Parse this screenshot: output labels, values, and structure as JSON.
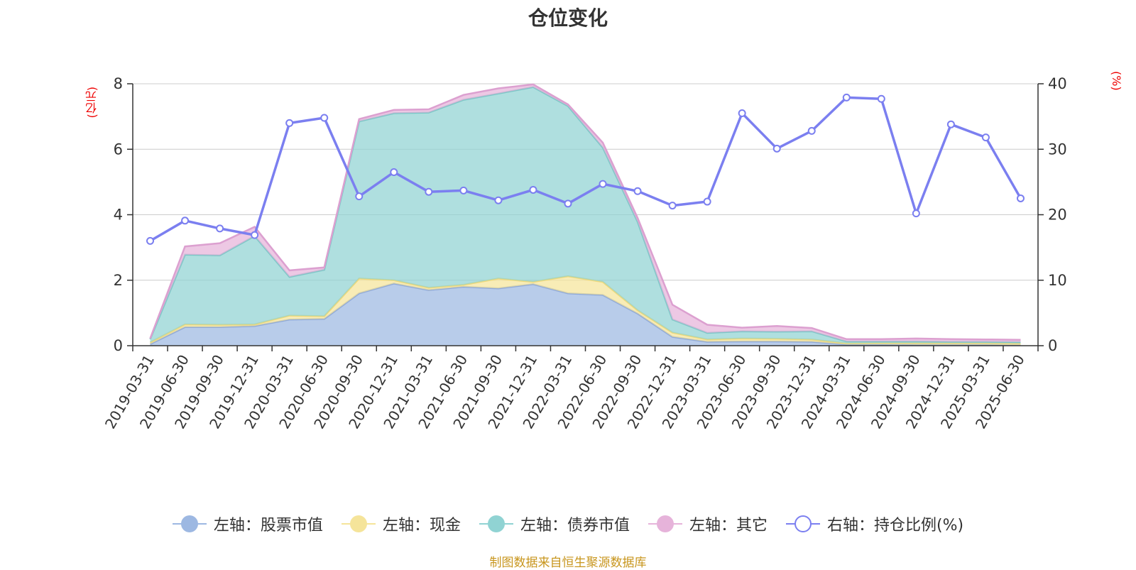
{
  "title": "仓位变化",
  "left_unit": "(亿元)",
  "right_unit": "(%)",
  "source": "制图数据来自恒生聚源数据库",
  "legend": [
    {
      "label": "左轴：股票市值",
      "color": "#9db8e2",
      "type": "area"
    },
    {
      "label": "左轴：现金",
      "color": "#f5e49a",
      "type": "area"
    },
    {
      "label": "左轴：债券市值",
      "color": "#90d3d3",
      "type": "area"
    },
    {
      "label": "左轴：其它",
      "color": "#e6b3da",
      "type": "area"
    },
    {
      "label": "右轴：持仓比例(%)",
      "color": "#7b7ff0",
      "type": "line"
    }
  ],
  "chart_data": {
    "type": "area",
    "categories": [
      "2019-03-31",
      "2019-06-30",
      "2019-09-30",
      "2019-12-31",
      "2020-03-31",
      "2020-06-30",
      "2020-09-30",
      "2020-12-31",
      "2021-03-31",
      "2021-06-30",
      "2021-09-30",
      "2021-12-31",
      "2022-03-31",
      "2022-06-30",
      "2022-09-30",
      "2022-12-31",
      "2023-03-31",
      "2023-06-30",
      "2023-09-30",
      "2023-12-31",
      "2024-03-31",
      "2024-06-30",
      "2024-09-30",
      "2024-12-31",
      "2025-03-31",
      "2025-06-30"
    ],
    "left_axis": {
      "ylim": [
        0,
        8
      ],
      "ticks": [
        0,
        2,
        4,
        6,
        8
      ]
    },
    "right_axis": {
      "ylim": [
        0,
        40
      ],
      "ticks": [
        0,
        10,
        20,
        30,
        40
      ]
    },
    "grid": true,
    "legend_position": "bottom",
    "series": [
      {
        "name": "左轴：股票市值",
        "axis": "left",
        "stack": true,
        "color": "#9db8e2",
        "values": [
          0.05,
          0.57,
          0.57,
          0.6,
          0.8,
          0.82,
          1.6,
          1.9,
          1.7,
          1.8,
          1.75,
          1.88,
          1.6,
          1.55,
          0.98,
          0.27,
          0.12,
          0.13,
          0.13,
          0.12,
          0.04,
          0.04,
          0.03,
          0.03,
          0.03,
          0.02
        ]
      },
      {
        "name": "左轴：现金",
        "axis": "left",
        "stack": true,
        "color": "#f5e49a",
        "values": [
          0.05,
          0.08,
          0.07,
          0.05,
          0.12,
          0.08,
          0.45,
          0.1,
          0.07,
          0.06,
          0.3,
          0.07,
          0.52,
          0.4,
          0.1,
          0.13,
          0.07,
          0.09,
          0.08,
          0.07,
          0.03,
          0.04,
          0.05,
          0.05,
          0.05,
          0.05
        ]
      },
      {
        "name": "左轴：债券市值",
        "axis": "left",
        "stack": true,
        "color": "#90d3d3",
        "values": [
          0.1,
          2.13,
          2.12,
          2.7,
          1.18,
          1.42,
          4.8,
          5.1,
          5.35,
          5.65,
          5.65,
          5.95,
          5.2,
          4.1,
          2.7,
          0.4,
          0.2,
          0.22,
          0.22,
          0.25,
          0.06,
          0.05,
          0.05,
          0.04,
          0.04,
          0.04
        ]
      },
      {
        "name": "左轴：其它",
        "axis": "left",
        "stack": true,
        "color": "#e6b3da",
        "values": [
          0.02,
          0.25,
          0.37,
          0.28,
          0.2,
          0.07,
          0.07,
          0.1,
          0.1,
          0.15,
          0.16,
          0.08,
          0.05,
          0.15,
          0.12,
          0.45,
          0.25,
          0.11,
          0.17,
          0.1,
          0.07,
          0.07,
          0.09,
          0.08,
          0.07,
          0.07
        ]
      },
      {
        "name": "右轴：持仓比例(%)",
        "axis": "right",
        "type": "line",
        "color": "#7b7ff0",
        "values": [
          16.0,
          19.1,
          17.9,
          16.9,
          34.0,
          34.8,
          22.8,
          26.5,
          23.5,
          23.7,
          22.2,
          23.8,
          21.7,
          24.7,
          23.6,
          21.4,
          22.0,
          35.5,
          30.1,
          32.8,
          37.9,
          37.7,
          20.2,
          33.8,
          31.8,
          22.5
        ]
      }
    ]
  }
}
